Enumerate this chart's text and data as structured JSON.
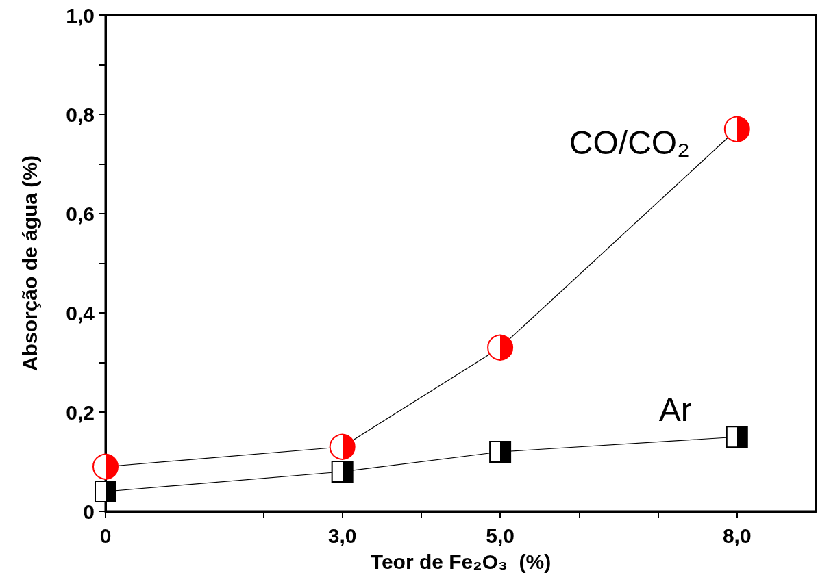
{
  "chart_data": {
    "type": "line",
    "xlabel": "Teor de Fe₂O₃  (%)",
    "ylabel": "Absorção de água (%)",
    "x": [
      0,
      3,
      5,
      8
    ],
    "series": [
      {
        "name": "CO/CO₂",
        "color": "#ff0000",
        "marker": "circle",
        "values": [
          0.09,
          0.13,
          0.33,
          0.77
        ]
      },
      {
        "name": "Ar",
        "color": "#000000",
        "marker": "square",
        "values": [
          0.04,
          0.08,
          0.12,
          0.15
        ]
      }
    ],
    "xlim": [
      0,
      9
    ],
    "xticks": [
      0,
      {
        "value": 2,
        "label": null
      },
      {
        "value": 3,
        "label": "3,0"
      },
      {
        "value": 4,
        "label": null
      },
      {
        "value": 5,
        "label": "5,0"
      },
      {
        "value": 6,
        "label": null
      },
      {
        "value": 7,
        "label": null
      },
      {
        "value": 8,
        "label": "8,0"
      }
    ],
    "ylim": [
      0,
      1
    ],
    "yticks": [
      0,
      {
        "value": 0.1,
        "label": null
      },
      {
        "value": 0.2,
        "label": "0,2"
      },
      {
        "value": 0.3,
        "label": null
      },
      {
        "value": 0.4,
        "label": "0,4"
      },
      {
        "value": 0.5,
        "label": null
      },
      {
        "value": 0.6,
        "label": "0,6"
      },
      {
        "value": 0.7,
        "label": null
      },
      {
        "value": 0.8,
        "label": "0,8"
      },
      {
        "value": 0.9,
        "label": null
      },
      {
        "value": 1,
        "label": "1,0"
      }
    ],
    "grid": false,
    "legend": false,
    "line_style": "solid"
  }
}
